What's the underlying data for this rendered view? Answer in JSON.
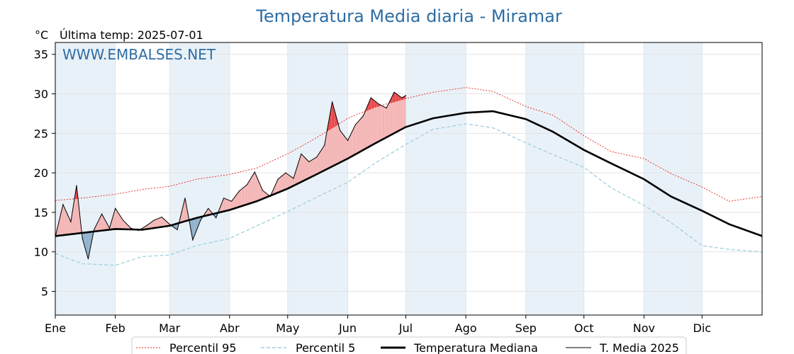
{
  "chart_data": {
    "type": "line",
    "title": "Temperatura Media diaria - Miramar",
    "unit_label": "°C",
    "subtitle": "Última temp: 2025-07-01",
    "watermark": "WWW.EMBALSES.NET",
    "ylim": [
      2,
      36.5
    ],
    "yticks": [
      5,
      10,
      15,
      20,
      25,
      30,
      35
    ],
    "xlim": [
      1,
      366
    ],
    "months": [
      {
        "label": "Ene",
        "start": 1
      },
      {
        "label": "Feb",
        "start": 32
      },
      {
        "label": "Mar",
        "start": 60
      },
      {
        "label": "Abr",
        "start": 91
      },
      {
        "label": "May",
        "start": 121
      },
      {
        "label": "Jun",
        "start": 152
      },
      {
        "label": "Jul",
        "start": 182
      },
      {
        "label": "Ago",
        "start": 213
      },
      {
        "label": "Sep",
        "start": 244
      },
      {
        "label": "Oct",
        "start": 274
      },
      {
        "label": "Nov",
        "start": 305
      },
      {
        "label": "Dic",
        "start": 335
      }
    ],
    "shaded_months": [
      "Ene",
      "Mar",
      "May",
      "Jul",
      "Sep",
      "Nov"
    ],
    "grid": true,
    "legend_position": "bottom-center",
    "legend": [
      {
        "label": "Percentil 95",
        "style": "red-dotted"
      },
      {
        "label": "Percentil 5",
        "style": "lightblue-dashed"
      },
      {
        "label": "Temperatura Mediana",
        "style": "black-thick"
      },
      {
        "label": "T. Media 2025",
        "style": "black-thin"
      }
    ],
    "colors": {
      "title": "#2e6da4",
      "p95": "#e8231e",
      "p5": "#9ecfe0",
      "median": "#000000",
      "above_fill": "#f4b4b4",
      "above_p95_fill": "#e8474a",
      "below_fill": "#8fb0cc",
      "below_p5_fill": "#2e6da4",
      "month_band": "#e9f1f8"
    },
    "series": [
      {
        "name": "Temperatura Mediana",
        "x": [
          1,
          15,
          32,
          46,
          60,
          74,
          91,
          105,
          121,
          135,
          152,
          166,
          182,
          196,
          213,
          227,
          244,
          258,
          274,
          288,
          305,
          319,
          335,
          349,
          366
        ],
        "values": [
          12.0,
          12.4,
          12.9,
          12.8,
          13.3,
          14.3,
          15.3,
          16.4,
          18.0,
          19.7,
          21.8,
          23.7,
          25.8,
          26.9,
          27.6,
          27.8,
          26.8,
          25.2,
          22.9,
          21.2,
          19.2,
          17.0,
          15.2,
          13.5,
          12.0
        ]
      },
      {
        "name": "Percentil 95",
        "x": [
          1,
          15,
          32,
          46,
          60,
          74,
          91,
          105,
          121,
          135,
          152,
          166,
          182,
          196,
          213,
          227,
          244,
          258,
          274,
          288,
          305,
          319,
          335,
          349,
          366
        ],
        "values": [
          16.5,
          16.8,
          17.3,
          17.9,
          18.3,
          19.2,
          19.8,
          20.6,
          22.4,
          24.3,
          26.9,
          28.3,
          29.4,
          30.2,
          30.8,
          30.3,
          28.4,
          27.3,
          24.7,
          22.7,
          21.8,
          19.9,
          18.2,
          16.4,
          17.0
        ]
      },
      {
        "name": "Percentil 5",
        "x": [
          1,
          15,
          32,
          46,
          60,
          74,
          91,
          105,
          121,
          135,
          152,
          166,
          182,
          196,
          213,
          227,
          244,
          258,
          274,
          288,
          305,
          319,
          335,
          349,
          366
        ],
        "values": [
          9.8,
          8.5,
          8.3,
          9.4,
          9.6,
          10.8,
          11.7,
          13.3,
          15.1,
          16.8,
          18.8,
          21.2,
          23.6,
          25.5,
          26.2,
          25.7,
          23.8,
          22.3,
          20.7,
          18.1,
          15.9,
          13.7,
          10.8,
          10.3,
          10.0
        ]
      },
      {
        "name": "T. Media 2025",
        "x": [
          1,
          5,
          9,
          12,
          15,
          18,
          21,
          25,
          29,
          32,
          36,
          40,
          44,
          48,
          52,
          56,
          60,
          64,
          68,
          72,
          76,
          80,
          84,
          88,
          92,
          96,
          100,
          104,
          108,
          112,
          116,
          120,
          124,
          128,
          132,
          136,
          140,
          144,
          148,
          152,
          156,
          160,
          164,
          168,
          172,
          176,
          180,
          182
        ],
        "values": [
          11.9,
          16.0,
          13.8,
          18.4,
          11.7,
          9.1,
          12.8,
          14.8,
          13.0,
          15.5,
          14.0,
          13.0,
          12.7,
          13.3,
          14.0,
          14.4,
          13.5,
          12.8,
          16.8,
          11.5,
          14.0,
          15.5,
          14.3,
          16.8,
          16.4,
          17.7,
          18.5,
          20.1,
          17.8,
          17.0,
          19.2,
          20.0,
          19.3,
          22.4,
          21.4,
          22.0,
          23.5,
          29.0,
          25.4,
          24.1,
          26.1,
          27.2,
          29.5,
          28.7,
          28.2,
          30.2,
          29.5,
          29.8
        ]
      }
    ]
  }
}
